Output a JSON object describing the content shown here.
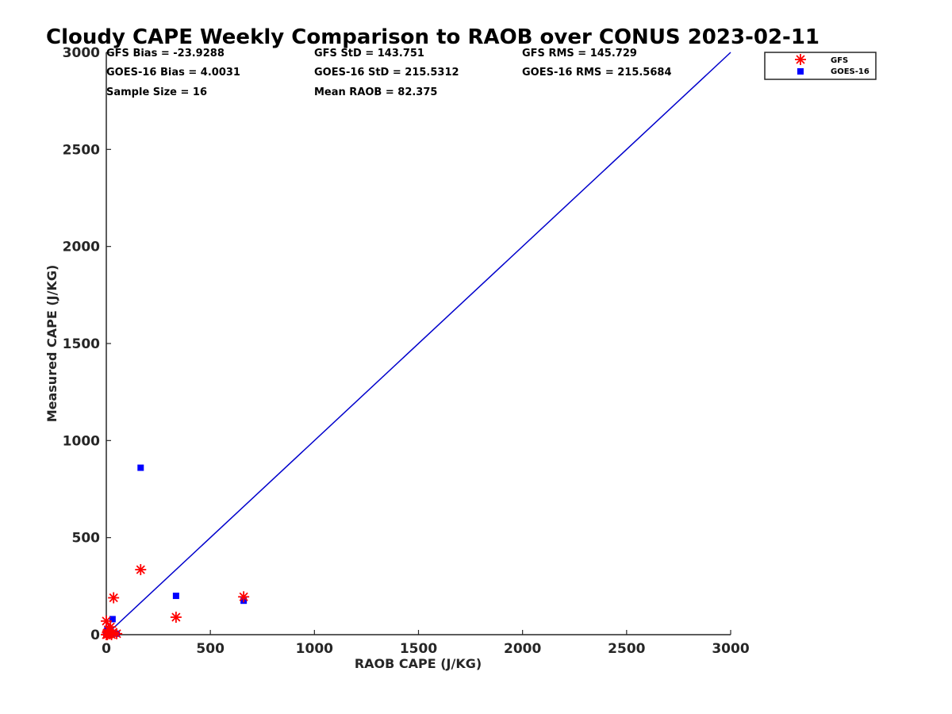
{
  "chart_data": {
    "type": "scatter",
    "title": "Cloudy CAPE Weekly Comparison to RAOB over CONUS 2023-02-11",
    "xlabel": "RAOB CAPE (J/KG)",
    "ylabel": "Measured CAPE (J/KG)",
    "xlim": [
      0,
      3000
    ],
    "ylim": [
      0,
      3000
    ],
    "xticks": [
      0,
      500,
      1000,
      1500,
      2000,
      2500,
      3000
    ],
    "yticks": [
      0,
      500,
      1000,
      1500,
      2000,
      2500,
      3000
    ],
    "grid": false,
    "legend_position": "top-right (outside axes)",
    "reference_line": {
      "from": [
        0,
        0
      ],
      "to": [
        3000,
        3000
      ],
      "color": "#0000cc"
    },
    "series": [
      {
        "name": "GFS",
        "marker": "asterisk",
        "color": "#ff0000",
        "points": [
          [
            0,
            0
          ],
          [
            0,
            70
          ],
          [
            5,
            10
          ],
          [
            10,
            25
          ],
          [
            15,
            5
          ],
          [
            20,
            40
          ],
          [
            30,
            10
          ],
          [
            35,
            190
          ],
          [
            50,
            5
          ],
          [
            165,
            335
          ],
          [
            335,
            90
          ],
          [
            660,
            195
          ],
          [
            5,
            0
          ],
          [
            25,
            0
          ]
        ]
      },
      {
        "name": "GOES-16",
        "marker": "square",
        "color": "#0000ff",
        "points": [
          [
            0,
            0
          ],
          [
            5,
            30
          ],
          [
            10,
            10
          ],
          [
            15,
            5
          ],
          [
            20,
            15
          ],
          [
            25,
            0
          ],
          [
            30,
            80
          ],
          [
            50,
            5
          ],
          [
            165,
            860
          ],
          [
            335,
            200
          ],
          [
            660,
            175
          ],
          [
            5,
            15
          ],
          [
            0,
            5
          ]
        ]
      }
    ],
    "stats": {
      "gfs_bias": "GFS Bias = -23.9288",
      "gfs_std": "GFS StD = 143.751",
      "gfs_rms": "GFS RMS = 145.729",
      "goes_bias": "GOES-16 Bias = 4.0031",
      "goes_std": "GOES-16 StD = 215.5312",
      "goes_rms": "GOES-16 RMS = 215.5684",
      "sample_size": "Sample Size = 16",
      "mean_raob": "Mean RAOB = 82.375"
    },
    "legend": [
      "GFS",
      "GOES-16"
    ]
  }
}
